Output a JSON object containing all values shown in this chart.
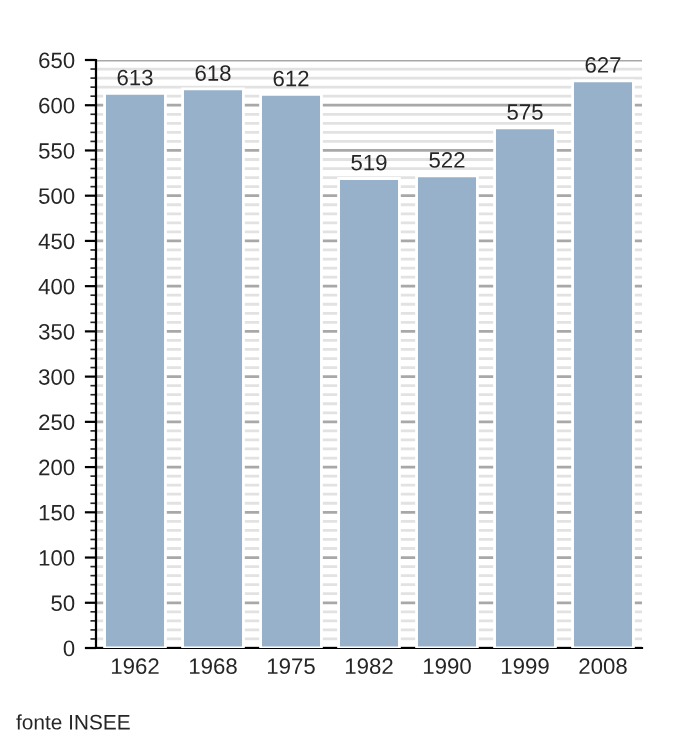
{
  "chart_data": {
    "type": "bar",
    "categories": [
      "1962",
      "1968",
      "1975",
      "1982",
      "1990",
      "1999",
      "2008"
    ],
    "values": [
      613,
      618,
      612,
      519,
      522,
      575,
      627
    ],
    "color": "#97b1cb",
    "ylim": [
      0,
      650
    ],
    "yticks": [
      0,
      50,
      100,
      150,
      200,
      250,
      300,
      350,
      400,
      450,
      500,
      550,
      600,
      650
    ],
    "grid": "y",
    "data_labels": true,
    "annotations": [
      "fonte INSEE"
    ]
  }
}
